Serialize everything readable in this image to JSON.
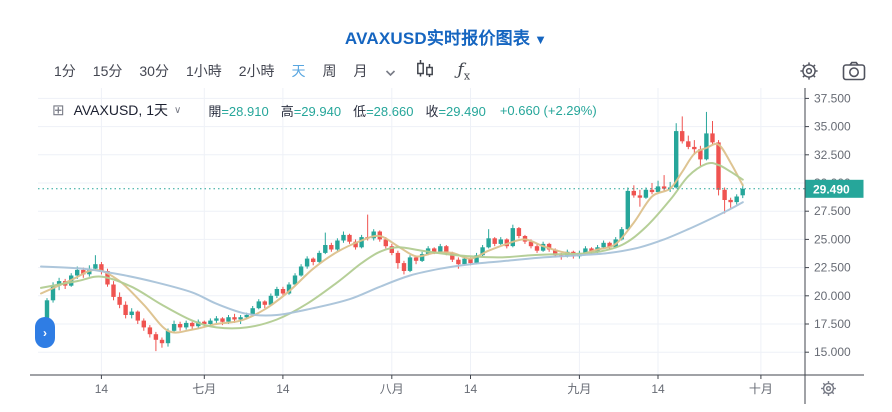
{
  "title": {
    "text": "AVAXUSD实时报价图表",
    "arrow": "▼"
  },
  "toolbar": {
    "intervals": [
      {
        "label": "1分",
        "active": false
      },
      {
        "label": "15分",
        "active": false
      },
      {
        "label": "30分",
        "active": false
      },
      {
        "label": "1小時",
        "active": false
      },
      {
        "label": "2小時",
        "active": false
      },
      {
        "label": "天",
        "active": true
      },
      {
        "label": "周",
        "active": false
      },
      {
        "label": "月",
        "active": false
      }
    ],
    "fx_f": "ƒ",
    "fx_sub": "x",
    "icons": [
      "chevron-down-icon",
      "candlestick-style-icon",
      "indicators-fx-icon",
      "gear-icon",
      "camera-icon"
    ]
  },
  "legend": {
    "expand_icon": "⊞",
    "symbol": "AVAXUSD, 1天",
    "chevron": "∨",
    "items": [
      {
        "label": "開",
        "value": "=28.910"
      },
      {
        "label": "高",
        "value": "=29.940"
      },
      {
        "label": "低",
        "value": "=28.660"
      },
      {
        "label": "收",
        "value": "=29.490"
      }
    ],
    "change": "+0.660 (+2.29%)"
  },
  "pill": {
    "chevron": "›"
  },
  "colors": {
    "accent_title": "#1565c0",
    "interval_active": "#58a6e0",
    "up": "#26a69a",
    "down": "#ef5350",
    "ma_fast": "#dcc18c",
    "ma_mid": "#b2cc92",
    "ma_slow": "#a9c3d9",
    "grid": "#eef1f7",
    "axis_line": "#42464e",
    "axis_text": "#676b74",
    "badge_bg": "#26a69a",
    "badge_text": "#ffffff",
    "pill_bg": "#2f7de4",
    "last_price_line": "#26a69a"
  },
  "chart_data": {
    "type": "candlestick",
    "symbol": "AVAXUSD",
    "interval": "1天",
    "last": {
      "open": 28.91,
      "high": 29.94,
      "low": 28.66,
      "close": 29.49,
      "change": 0.66,
      "change_pct": 2.29
    },
    "last_price_label": "29.490",
    "last_price": 29.49,
    "ylim": [
      13.0,
      38.4
    ],
    "grid": true,
    "y_ticks": [
      {
        "value": 37.5,
        "label": "37.500"
      },
      {
        "value": 35.0,
        "label": "35.000"
      },
      {
        "value": 32.5,
        "label": "32.500"
      },
      {
        "value": 30.0,
        "label": "30.000"
      },
      {
        "value": 27.5,
        "label": "27.500"
      },
      {
        "value": 25.0,
        "label": "25.000"
      },
      {
        "value": 22.5,
        "label": "22.500"
      },
      {
        "value": 20.0,
        "label": "20.000"
      },
      {
        "value": 17.5,
        "label": "17.500"
      },
      {
        "value": 15.0,
        "label": "15.000"
      }
    ],
    "x_ticks": [
      {
        "label": "14",
        "index": 9
      },
      {
        "label": "七月",
        "index": 26
      },
      {
        "label": "14",
        "index": 39
      },
      {
        "label": "八月",
        "index": 57
      },
      {
        "label": "14",
        "index": 70
      },
      {
        "label": "九月",
        "index": 88
      },
      {
        "label": "14",
        "index": 101
      },
      {
        "label": "十月",
        "index": 118
      }
    ],
    "ohlc": [
      [
        18.0,
        19.8,
        17.8,
        19.6
      ],
      [
        19.6,
        21.2,
        19.4,
        20.9
      ],
      [
        20.9,
        21.6,
        20.5,
        21.3
      ],
      [
        21.3,
        21.5,
        20.6,
        20.9
      ],
      [
        20.9,
        22.0,
        20.8,
        21.8
      ],
      [
        21.8,
        22.6,
        21.5,
        22.3
      ],
      [
        22.3,
        22.5,
        21.6,
        21.9
      ],
      [
        21.9,
        22.7,
        21.7,
        22.4
      ],
      [
        22.4,
        23.6,
        22.2,
        22.8
      ],
      [
        22.8,
        23.0,
        21.9,
        22.2
      ],
      [
        22.2,
        22.4,
        20.8,
        21.0
      ],
      [
        21.0,
        21.3,
        19.6,
        19.9
      ],
      [
        19.9,
        20.3,
        18.9,
        19.2
      ],
      [
        19.2,
        19.5,
        18.0,
        18.3
      ],
      [
        18.3,
        18.9,
        18.0,
        18.6
      ],
      [
        18.6,
        18.7,
        17.5,
        17.8
      ],
      [
        17.8,
        18.0,
        16.9,
        17.2
      ],
      [
        17.2,
        17.4,
        16.3,
        16.6
      ],
      [
        16.6,
        16.8,
        15.1,
        16.1
      ],
      [
        16.1,
        16.3,
        15.4,
        15.8
      ],
      [
        15.8,
        17.1,
        15.5,
        16.9
      ],
      [
        16.9,
        17.8,
        16.7,
        17.5
      ],
      [
        17.5,
        17.7,
        16.9,
        17.2
      ],
      [
        17.2,
        17.8,
        17.0,
        17.6
      ],
      [
        17.6,
        17.7,
        17.0,
        17.3
      ],
      [
        17.3,
        17.9,
        17.1,
        17.7
      ],
      [
        17.7,
        17.8,
        17.2,
        17.5
      ],
      [
        17.5,
        18.0,
        17.3,
        17.8
      ],
      [
        17.8,
        18.2,
        17.6,
        18.0
      ],
      [
        18.0,
        18.1,
        17.4,
        17.7
      ],
      [
        17.7,
        18.3,
        17.5,
        18.1
      ],
      [
        18.1,
        18.4,
        17.6,
        17.9
      ],
      [
        17.9,
        18.3,
        17.5,
        18.1
      ],
      [
        18.1,
        18.5,
        17.9,
        18.3
      ],
      [
        18.3,
        19.1,
        18.2,
        18.9
      ],
      [
        18.9,
        19.7,
        18.8,
        19.5
      ],
      [
        19.5,
        19.6,
        18.9,
        19.2
      ],
      [
        19.2,
        20.2,
        19.1,
        20.0
      ],
      [
        20.0,
        20.8,
        19.8,
        20.6
      ],
      [
        20.6,
        20.8,
        20.0,
        20.2
      ],
      [
        20.2,
        21.2,
        20.1,
        21.0
      ],
      [
        21.0,
        22.0,
        20.9,
        21.8
      ],
      [
        21.8,
        22.8,
        21.7,
        22.6
      ],
      [
        22.6,
        23.5,
        22.4,
        23.3
      ],
      [
        23.3,
        23.4,
        22.7,
        23.0
      ],
      [
        23.0,
        24.0,
        22.9,
        23.8
      ],
      [
        23.8,
        25.6,
        23.7,
        24.5
      ],
      [
        24.5,
        24.7,
        23.9,
        24.1
      ],
      [
        24.1,
        25.1,
        24.0,
        24.9
      ],
      [
        24.9,
        25.7,
        24.7,
        25.4
      ],
      [
        25.4,
        25.5,
        24.6,
        24.8
      ],
      [
        24.8,
        25.0,
        24.1,
        24.3
      ],
      [
        24.3,
        25.4,
        24.2,
        25.2
      ],
      [
        25.2,
        27.2,
        24.9,
        25.1
      ],
      [
        25.1,
        25.9,
        24.9,
        25.7
      ],
      [
        25.7,
        25.8,
        24.8,
        25.0
      ],
      [
        25.0,
        25.2,
        24.2,
        24.4
      ],
      [
        24.4,
        24.6,
        23.6,
        23.8
      ],
      [
        23.8,
        24.0,
        22.4,
        22.9
      ],
      [
        22.9,
        23.1,
        21.9,
        22.2
      ],
      [
        22.2,
        23.6,
        22.1,
        23.4
      ],
      [
        23.4,
        23.5,
        22.8,
        23.1
      ],
      [
        23.1,
        23.9,
        23.0,
        23.7
      ],
      [
        23.7,
        24.4,
        23.6,
        24.2
      ],
      [
        24.2,
        24.3,
        23.7,
        23.9
      ],
      [
        23.9,
        24.6,
        23.8,
        24.4
      ],
      [
        24.4,
        24.5,
        23.6,
        23.8
      ],
      [
        23.8,
        23.9,
        23.0,
        23.2
      ],
      [
        23.2,
        23.4,
        22.4,
        22.8
      ],
      [
        22.8,
        23.5,
        22.7,
        23.3
      ],
      [
        23.3,
        23.4,
        22.7,
        22.9
      ],
      [
        22.9,
        23.8,
        22.8,
        23.6
      ],
      [
        23.6,
        24.5,
        23.5,
        24.3
      ],
      [
        24.3,
        25.9,
        24.2,
        25.1
      ],
      [
        25.1,
        25.2,
        24.4,
        24.6
      ],
      [
        24.6,
        25.2,
        24.5,
        25.0
      ],
      [
        25.0,
        25.1,
        24.2,
        24.4
      ],
      [
        24.4,
        26.3,
        24.3,
        26.0
      ],
      [
        26.0,
        26.1,
        25.1,
        25.3
      ],
      [
        25.3,
        25.4,
        24.6,
        24.8
      ],
      [
        24.8,
        25.0,
        24.2,
        24.4
      ],
      [
        24.4,
        24.6,
        23.8,
        24.0
      ],
      [
        24.0,
        24.8,
        23.9,
        24.6
      ],
      [
        24.6,
        24.7,
        23.9,
        24.1
      ],
      [
        24.1,
        24.2,
        23.4,
        23.6
      ],
      [
        23.6,
        23.8,
        23.2,
        23.5
      ],
      [
        23.5,
        24.1,
        23.4,
        23.9
      ],
      [
        23.9,
        24.0,
        23.3,
        23.5
      ],
      [
        23.5,
        24.0,
        23.3,
        23.8
      ],
      [
        23.8,
        24.4,
        23.7,
        24.2
      ],
      [
        24.2,
        24.3,
        23.7,
        23.9
      ],
      [
        23.9,
        24.5,
        23.8,
        24.3
      ],
      [
        24.3,
        24.9,
        24.2,
        24.7
      ],
      [
        24.7,
        24.8,
        24.1,
        24.3
      ],
      [
        24.3,
        25.2,
        24.2,
        25.0
      ],
      [
        25.0,
        26.1,
        24.9,
        25.9
      ],
      [
        25.9,
        29.6,
        25.8,
        29.3
      ],
      [
        29.3,
        29.8,
        28.7,
        28.9
      ],
      [
        28.9,
        29.4,
        27.9,
        28.7
      ],
      [
        28.7,
        29.6,
        28.6,
        29.4
      ],
      [
        29.4,
        30.0,
        29.0,
        29.2
      ],
      [
        29.2,
        30.2,
        29.1,
        29.7
      ],
      [
        29.7,
        30.7,
        29.3,
        29.5
      ],
      [
        29.5,
        30.1,
        29.2,
        29.6
      ],
      [
        29.6,
        35.3,
        29.5,
        34.6
      ],
      [
        34.6,
        35.9,
        33.5,
        33.7
      ],
      [
        33.7,
        34.2,
        33.0,
        33.2
      ],
      [
        33.2,
        33.8,
        32.5,
        33.0
      ],
      [
        33.0,
        33.3,
        31.5,
        32.1
      ],
      [
        32.1,
        36.3,
        32.0,
        34.4
      ],
      [
        34.4,
        35.5,
        33.4,
        33.6
      ],
      [
        33.6,
        33.8,
        28.9,
        29.4
      ],
      [
        29.4,
        29.6,
        27.3,
        28.5
      ],
      [
        28.5,
        28.7,
        27.8,
        28.3
      ],
      [
        28.3,
        29.0,
        28.1,
        28.8
      ],
      [
        28.91,
        29.94,
        28.66,
        29.49
      ]
    ],
    "ma_lines": [
      {
        "name": "ma-fast",
        "color": "#dcc18c",
        "points": [
          [
            -1,
            20.2
          ],
          [
            4,
            21.4
          ],
          [
            8,
            22.3
          ],
          [
            12,
            21.3
          ],
          [
            16,
            19.2
          ],
          [
            20,
            16.9
          ],
          [
            24,
            17.0
          ],
          [
            28,
            17.5
          ],
          [
            32,
            17.8
          ],
          [
            36,
            18.8
          ],
          [
            40,
            20.4
          ],
          [
            44,
            22.4
          ],
          [
            48,
            23.9
          ],
          [
            52,
            24.9
          ],
          [
            55,
            25.3
          ],
          [
            58,
            24.4
          ],
          [
            61,
            23.5
          ],
          [
            64,
            23.8
          ],
          [
            67,
            23.8
          ],
          [
            70,
            23.3
          ],
          [
            73,
            24.0
          ],
          [
            76,
            24.6
          ],
          [
            79,
            25.0
          ],
          [
            82,
            24.4
          ],
          [
            85,
            23.9
          ],
          [
            88,
            23.7
          ],
          [
            91,
            24.1
          ],
          [
            94,
            24.6
          ],
          [
            97,
            26.5
          ],
          [
            100,
            28.8
          ],
          [
            103,
            29.5
          ],
          [
            105,
            31.0
          ],
          [
            107,
            32.6
          ],
          [
            109,
            33.1
          ],
          [
            111,
            33.4
          ],
          [
            113,
            31.8
          ],
          [
            115,
            29.8
          ]
        ]
      },
      {
        "name": "ma-mid",
        "color": "#b2cc92",
        "points": [
          [
            -1,
            20.7
          ],
          [
            5,
            21.3
          ],
          [
            9,
            21.7
          ],
          [
            14,
            20.8
          ],
          [
            19,
            19.2
          ],
          [
            24,
            17.8
          ],
          [
            28,
            17.2
          ],
          [
            33,
            17.2
          ],
          [
            38,
            17.9
          ],
          [
            43,
            19.3
          ],
          [
            48,
            21.2
          ],
          [
            52,
            22.9
          ],
          [
            55,
            23.9
          ],
          [
            58,
            24.3
          ],
          [
            62,
            24.0
          ],
          [
            66,
            23.7
          ],
          [
            70,
            23.5
          ],
          [
            75,
            23.4
          ],
          [
            80,
            23.6
          ],
          [
            85,
            23.7
          ],
          [
            90,
            23.8
          ],
          [
            95,
            24.5
          ],
          [
            99,
            26.1
          ],
          [
            103,
            28.5
          ],
          [
            106,
            30.6
          ],
          [
            109,
            31.7
          ],
          [
            111,
            31.6
          ],
          [
            113,
            31.0
          ],
          [
            115,
            30.3
          ]
        ]
      },
      {
        "name": "ma-slow",
        "color": "#a9c3d9",
        "points": [
          [
            -1,
            22.6
          ],
          [
            6,
            22.4
          ],
          [
            12,
            21.9
          ],
          [
            18,
            21.2
          ],
          [
            24,
            20.3
          ],
          [
            28,
            19.3
          ],
          [
            33,
            18.4
          ],
          [
            38,
            18.3
          ],
          [
            44,
            18.9
          ],
          [
            50,
            19.7
          ],
          [
            55,
            20.8
          ],
          [
            60,
            21.8
          ],
          [
            65,
            22.4
          ],
          [
            70,
            22.8
          ],
          [
            76,
            23.1
          ],
          [
            82,
            23.4
          ],
          [
            88,
            23.6
          ],
          [
            93,
            23.8
          ],
          [
            98,
            24.3
          ],
          [
            102,
            25.0
          ],
          [
            106,
            25.9
          ],
          [
            110,
            26.9
          ],
          [
            113,
            27.7
          ],
          [
            115,
            28.3
          ]
        ]
      }
    ]
  }
}
